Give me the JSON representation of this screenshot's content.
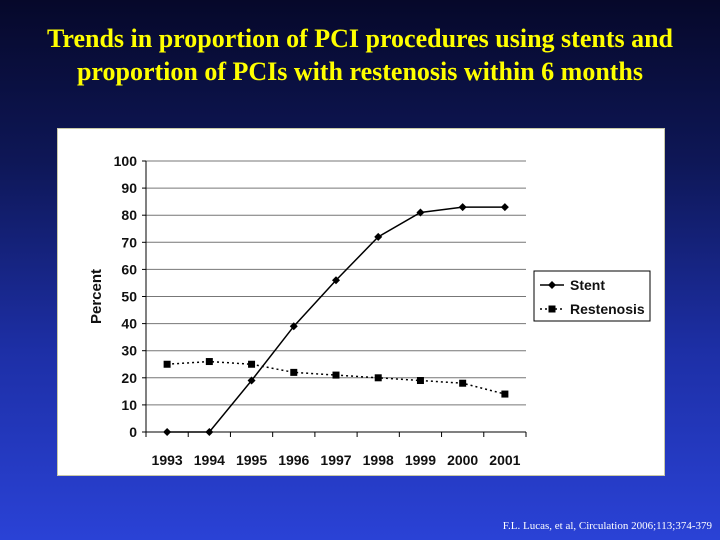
{
  "slide": {
    "title_line1": "Trends in proportion of PCI procedures using stents and",
    "title_line2": "proportion of PCIs with restenosis within 6 months",
    "citation": "F.L. Lucas, et al, Circulation 2006;113;374-379"
  },
  "colors": {
    "title": "#ffff00",
    "background_top": "#06082a",
    "background_bottom": "#2a42d6",
    "series": "#000000"
  },
  "chart_data": {
    "type": "line",
    "title": "",
    "xlabel": "",
    "ylabel": "Percent",
    "ylim": [
      0,
      100
    ],
    "yticks": [
      0,
      10,
      20,
      30,
      40,
      50,
      60,
      70,
      80,
      90,
      100
    ],
    "grid": true,
    "legend_position": "right",
    "x": [
      "1993",
      "1994",
      "1995",
      "1996",
      "1997",
      "1998",
      "1999",
      "2000",
      "2001"
    ],
    "series": [
      {
        "name": "Stent",
        "marker": "diamond",
        "line_style": "solid",
        "values": [
          0,
          0,
          19,
          39,
          56,
          72,
          81,
          83,
          83
        ]
      },
      {
        "name": "Restenosis",
        "marker": "square",
        "line_style": "dotted",
        "values": [
          25,
          26,
          25,
          22,
          21,
          20,
          19,
          18,
          14
        ]
      }
    ]
  }
}
